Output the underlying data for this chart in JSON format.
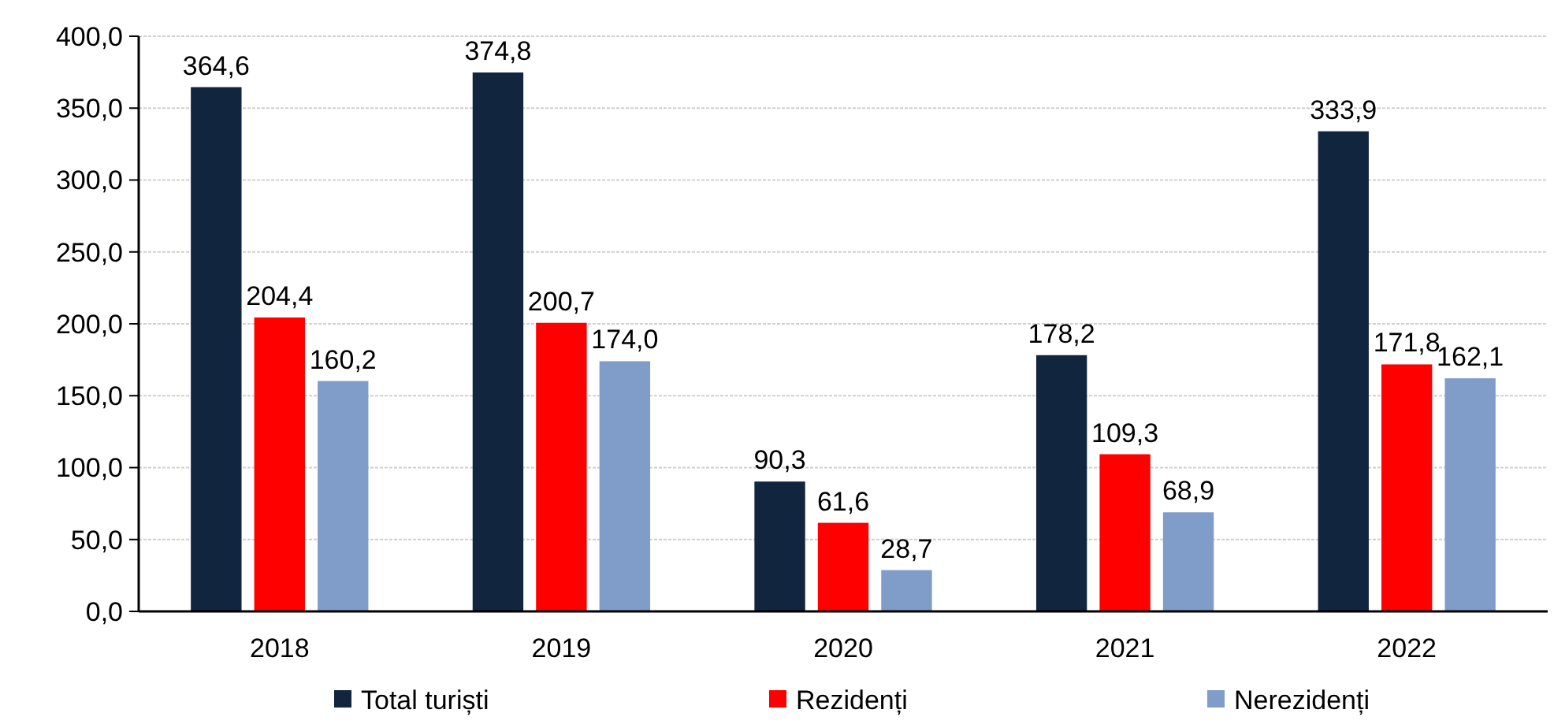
{
  "chart_data": {
    "type": "bar",
    "categories": [
      "2018",
      "2019",
      "2020",
      "2021",
      "2022"
    ],
    "series": [
      {
        "name": "Total turiști",
        "color": "#12253f",
        "values": [
          364.6,
          374.8,
          90.3,
          178.2,
          333.9
        ],
        "value_labels": [
          "364,6",
          "374,8",
          "90,3",
          "178,2",
          "333,9"
        ]
      },
      {
        "name": "Rezidenți",
        "color": "#ff0000",
        "values": [
          204.4,
          200.7,
          61.6,
          109.3,
          171.8
        ],
        "value_labels": [
          "204,4",
          "200,7",
          "61,6",
          "109,3",
          "171,8"
        ]
      },
      {
        "name": "Nerezidenți",
        "color": "#7f9dc8",
        "values": [
          160.2,
          174.0,
          28.7,
          68.9,
          162.1
        ],
        "value_labels": [
          "160,2",
          "174,0",
          "28,7",
          "68,9",
          "162,1"
        ]
      }
    ],
    "ylim": [
      0,
      400
    ],
    "yticks": [
      {
        "value": 0,
        "label": "0,0"
      },
      {
        "value": 50,
        "label": "50,0"
      },
      {
        "value": 100,
        "label": "100,0"
      },
      {
        "value": 150,
        "label": "150,0"
      },
      {
        "value": 200,
        "label": "200,0"
      },
      {
        "value": 250,
        "label": "250,0"
      },
      {
        "value": 300,
        "label": "300,0"
      },
      {
        "value": 350,
        "label": "350,0"
      },
      {
        "value": 400,
        "label": "400,0"
      }
    ],
    "grid": "y",
    "legend": "bottom"
  }
}
